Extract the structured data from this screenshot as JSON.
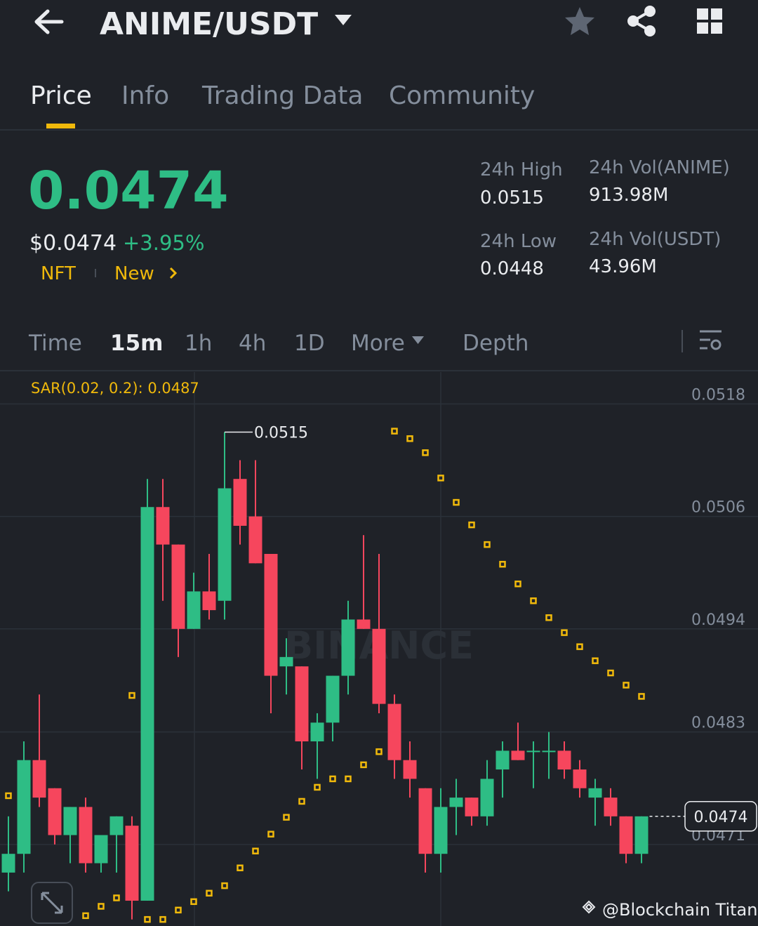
{
  "header": {
    "title": "ANIME/USDT"
  },
  "tabs": [
    "Price",
    "Info",
    "Trading Data",
    "Community"
  ],
  "price": {
    "last": "0.0474",
    "usd": "$0.0474",
    "change": "+3.95%",
    "tags": [
      "NFT",
      "New"
    ]
  },
  "stats": [
    {
      "label": "24h High",
      "value": "0.0515"
    },
    {
      "label": "24h Vol(ANIME)",
      "value": "913.98M"
    },
    {
      "label": "24h Low",
      "value": "0.0448"
    },
    {
      "label": "24h Vol(USDT)",
      "value": "43.96M"
    }
  ],
  "intervals": [
    "Time",
    "15m",
    "1h",
    "4h",
    "1D",
    "More",
    "Depth"
  ],
  "chart_watermark": "BINANCE",
  "credit": "@Blockchain Titan",
  "chart_data": {
    "type": "candlestick",
    "indicator_label": "SAR(0.02, 0.2): 0.0487",
    "open": [
      0.0468,
      0.047,
      0.048,
      0.0477,
      0.0472,
      0.0475,
      0.0469,
      0.0472,
      0.0473,
      0.0465,
      0.0507,
      0.0503,
      0.0494,
      0.0498,
      0.0497,
      0.051,
      0.0506,
      0.0502,
      0.049,
      0.049,
      0.0482,
      0.0484,
      0.0489,
      0.0495,
      0.0494,
      0.0486,
      0.048,
      0.0477,
      0.047,
      0.0475,
      0.0476,
      0.0474,
      0.0479,
      0.0481,
      0.0481,
      0.0481,
      0.0481,
      0.0479,
      0.0476,
      0.0476,
      0.0474,
      0.047
    ],
    "high": [
      0.0474,
      0.0482,
      0.0487,
      0.0477,
      0.0475,
      0.0476,
      0.0472,
      0.0474,
      0.0474,
      0.051,
      0.051,
      0.0503,
      0.05,
      0.0502,
      0.0515,
      0.0512,
      0.0512,
      0.0502,
      0.0493,
      0.049,
      0.0485,
      0.0489,
      0.0497,
      0.0504,
      0.0502,
      0.0487,
      0.0482,
      0.0477,
      0.0477,
      0.0478,
      0.0476,
      0.048,
      0.0482,
      0.0484,
      0.0482,
      0.0483,
      0.0482,
      0.048,
      0.0478,
      0.0477,
      0.0474,
      0.0474
    ],
    "low": [
      0.0466,
      0.0468,
      0.0475,
      0.0471,
      0.0469,
      0.0468,
      0.0468,
      0.0468,
      0.0463,
      0.0465,
      0.0497,
      0.0491,
      0.0494,
      0.0495,
      0.0495,
      0.0503,
      0.0501,
      0.0485,
      0.0487,
      0.0479,
      0.0478,
      0.0482,
      0.0487,
      0.0494,
      0.0485,
      0.0478,
      0.0476,
      0.0468,
      0.0468,
      0.0472,
      0.0473,
      0.0473,
      0.0476,
      0.048,
      0.0477,
      0.0478,
      0.0478,
      0.0476,
      0.0473,
      0.0473,
      0.0469,
      0.0469
    ],
    "close": [
      0.047,
      0.048,
      0.0476,
      0.0472,
      0.0475,
      0.0469,
      0.0472,
      0.0474,
      0.0465,
      0.0507,
      0.0503,
      0.0494,
      0.0498,
      0.0496,
      0.0509,
      0.0505,
      0.0501,
      0.0489,
      0.0491,
      0.0482,
      0.0484,
      0.0489,
      0.0495,
      0.0494,
      0.0486,
      0.048,
      0.0478,
      0.047,
      0.0475,
      0.0476,
      0.0474,
      0.0478,
      0.0481,
      0.048,
      0.0481,
      0.0481,
      0.0479,
      0.0477,
      0.0477,
      0.0474,
      0.047,
      0.0474
    ],
    "sar": [
      0.04762,
      null,
      null,
      null,
      null,
      0.04634,
      0.04644,
      0.04653,
      0.04869,
      0.0463,
      0.0463,
      0.0464,
      0.04649,
      0.04658,
      0.04666,
      0.04685,
      0.04703,
      0.04721,
      0.04739,
      0.04756,
      0.04771,
      0.0478,
      0.0478,
      0.04795,
      0.04809,
      0.05151,
      0.05143,
      0.05128,
      0.05101,
      0.05075,
      0.05051,
      0.0503,
      0.05009,
      0.04988,
      0.0497,
      0.04952,
      0.04936,
      0.04921,
      0.04906,
      0.04893,
      0.0488,
      0.04868
    ],
    "up_color": "#2ebd85",
    "down_color": "#f6465d",
    "sar_color": "#f0b90b",
    "max_price": 0.0515,
    "max_index": 14,
    "last_price": 0.0474,
    "ylim": [
      0.04623,
      0.05214
    ],
    "yticks": [
      0.0518,
      0.0506,
      0.0494,
      0.0483,
      0.0471
    ],
    "grid": true
  }
}
